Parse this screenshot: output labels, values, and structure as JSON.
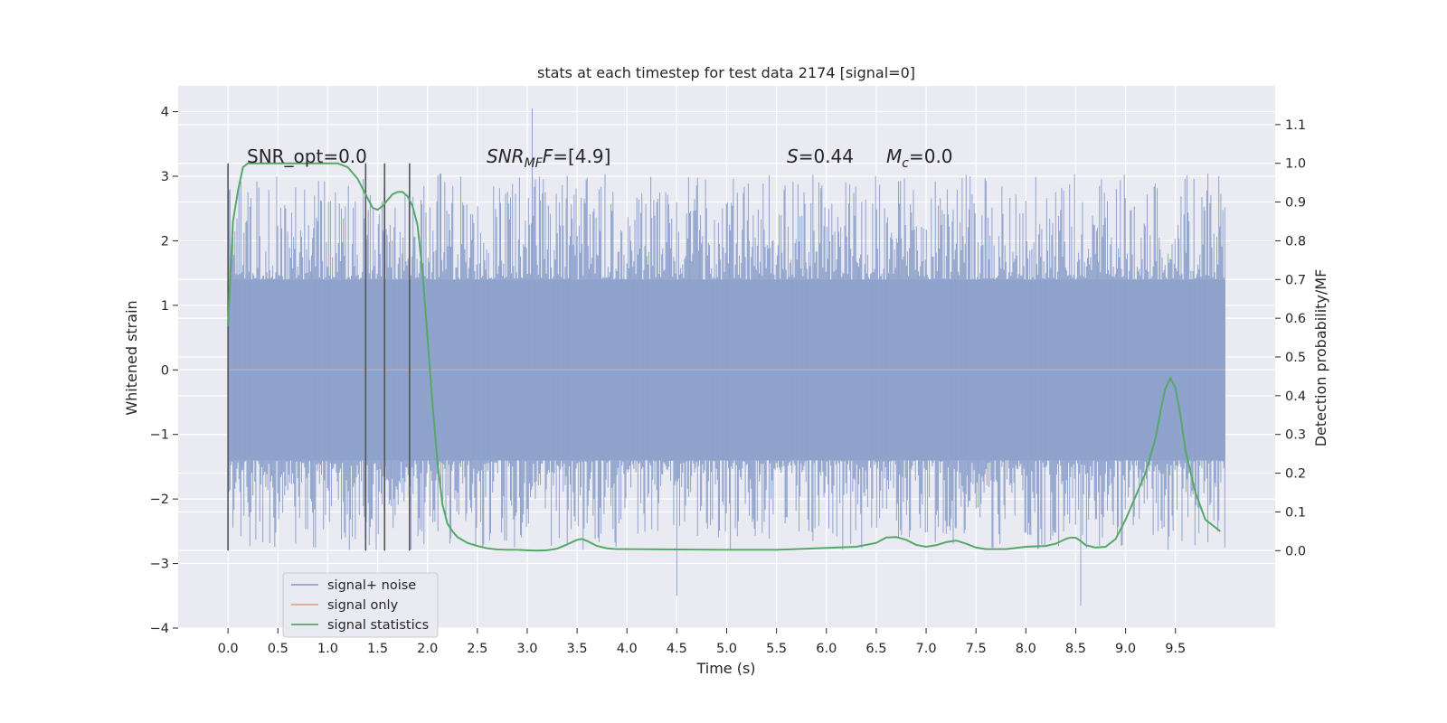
{
  "chart_data": {
    "type": "line",
    "title": "stats at each timestep for test data 2174 [signal=0]",
    "xlabel": "Time (s)",
    "ylabel_left": "Whitened strain",
    "ylabel_right": "Detection probability/MF",
    "x_range": [
      -0.5,
      10.5
    ],
    "y_left_range": [
      -4,
      4.4
    ],
    "y_right_range": [
      -0.2,
      1.2
    ],
    "x_ticks": [
      "0.0",
      "0.5",
      "1.0",
      "1.5",
      "2.0",
      "2.5",
      "3.0",
      "3.5",
      "4.0",
      "4.5",
      "5.0",
      "5.5",
      "6.0",
      "6.5",
      "7.0",
      "7.5",
      "8.0",
      "8.5",
      "9.0",
      "9.5"
    ],
    "y_left_ticks": [
      "4",
      "3",
      "2",
      "1",
      "0",
      "−1",
      "−2",
      "−3",
      "−4"
    ],
    "y_right_ticks": [
      "1.1",
      "1.0",
      "0.9",
      "0.8",
      "0.7",
      "0.6",
      "0.5",
      "0.4",
      "0.3",
      "0.2",
      "0.1",
      "0.0"
    ],
    "grid": true,
    "legend_position": "lower-left",
    "annotations": {
      "snr_opt": "SNR_opt=0.0",
      "snr_mf_main": "SNR",
      "snr_mf_sub": "MF",
      "snr_mf_tail": "=[4.9]",
      "s_main": "S",
      "s_tail": "=0.44",
      "mc_main": "M",
      "mc_sub": "c",
      "mc_tail": "=0.0"
    },
    "vertical_markers_x": [
      0.0,
      1.38,
      1.57,
      1.82
    ],
    "series": [
      {
        "name": "signal+ noise",
        "color": "#8fa3cc",
        "x_range": [
          0,
          10
        ],
        "band": {
          "typical_abs": 1.4,
          "max": 4.05,
          "min": -3.65
        }
      },
      {
        "name": "signal only",
        "color": "#e0a58a",
        "x": [
          0,
          10
        ],
        "y": [
          0,
          0
        ]
      },
      {
        "name": "signal statistics",
        "color": "#55a868",
        "axis": "right",
        "x": [
          0.0,
          0.05,
          0.1,
          0.15,
          0.2,
          0.3,
          0.4,
          0.5,
          0.6,
          0.7,
          0.8,
          0.9,
          1.0,
          1.1,
          1.2,
          1.3,
          1.4,
          1.45,
          1.5,
          1.55,
          1.6,
          1.65,
          1.7,
          1.75,
          1.8,
          1.85,
          1.9,
          1.95,
          2.0,
          2.05,
          2.1,
          2.15,
          2.2,
          2.25,
          2.3,
          2.4,
          2.5,
          2.6,
          2.7,
          2.8,
          2.9,
          3.0,
          3.1,
          3.2,
          3.3,
          3.4,
          3.5,
          3.55,
          3.6,
          3.7,
          3.8,
          3.9,
          4.0,
          4.5,
          5.0,
          5.5,
          6.0,
          6.3,
          6.5,
          6.6,
          6.7,
          6.8,
          6.9,
          7.0,
          7.1,
          7.2,
          7.3,
          7.4,
          7.5,
          7.6,
          7.8,
          8.0,
          8.2,
          8.3,
          8.4,
          8.45,
          8.5,
          8.55,
          8.6,
          8.7,
          8.8,
          8.9,
          9.0,
          9.1,
          9.2,
          9.3,
          9.35,
          9.4,
          9.45,
          9.5,
          9.55,
          9.6,
          9.7,
          9.8,
          9.9,
          9.95
        ],
        "y": [
          0.58,
          0.85,
          0.93,
          0.99,
          1.0,
          1.0,
          1.0,
          1.0,
          1.0,
          1.0,
          1.0,
          1.0,
          1.0,
          1.0,
          0.99,
          0.96,
          0.91,
          0.885,
          0.88,
          0.89,
          0.905,
          0.92,
          0.926,
          0.926,
          0.915,
          0.89,
          0.84,
          0.72,
          0.55,
          0.38,
          0.23,
          0.12,
          0.07,
          0.05,
          0.035,
          0.02,
          0.012,
          0.006,
          0.003,
          0.002,
          0.002,
          0.001,
          0.0,
          0.001,
          0.005,
          0.016,
          0.028,
          0.03,
          0.025,
          0.012,
          0.006,
          0.004,
          0.004,
          0.003,
          0.002,
          0.002,
          0.007,
          0.01,
          0.02,
          0.034,
          0.035,
          0.028,
          0.015,
          0.01,
          0.014,
          0.022,
          0.026,
          0.018,
          0.008,
          0.004,
          0.004,
          0.01,
          0.012,
          0.018,
          0.03,
          0.034,
          0.033,
          0.025,
          0.014,
          0.008,
          0.01,
          0.03,
          0.08,
          0.14,
          0.2,
          0.29,
          0.36,
          0.42,
          0.445,
          0.42,
          0.35,
          0.26,
          0.15,
          0.08,
          0.06,
          0.05
        ]
      }
    ]
  }
}
